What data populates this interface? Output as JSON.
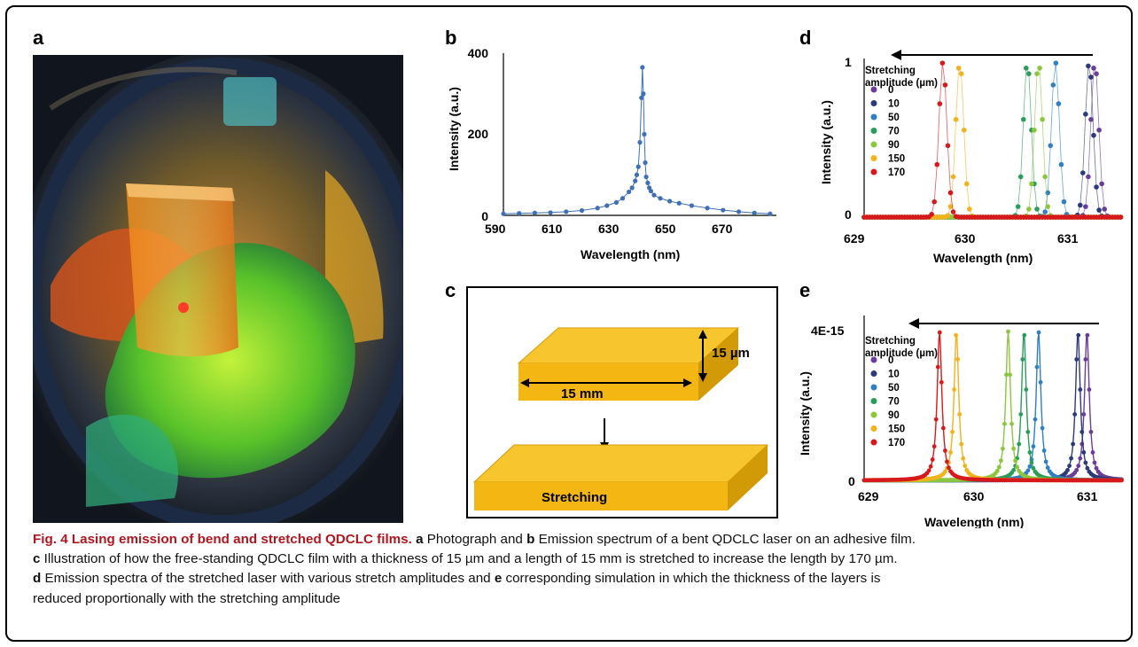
{
  "panel_labels": {
    "a": "a",
    "b": "b",
    "c": "c",
    "d": "d",
    "e": "e"
  },
  "chart_data": [
    {
      "panel": "b",
      "type": "scatter",
      "xlabel": "Wavelength (nm)",
      "ylabel": "Intensity (a.u.)",
      "xlim": [
        590,
        677
      ],
      "ylim": [
        0,
        400
      ],
      "xticks": [
        "590",
        "610",
        "630",
        "650",
        "670"
      ],
      "yticks": [
        "0",
        "200",
        "400"
      ],
      "series": [
        {
          "color": "#3f6fb6",
          "x": [
            590,
            595,
            600,
            605,
            610,
            615,
            620,
            623,
            626,
            628,
            630,
            631,
            632,
            632.5,
            633,
            633.5,
            634,
            634.3,
            634.6,
            634.9,
            635.2,
            635.5,
            636,
            636.5,
            637,
            638,
            640,
            643,
            646,
            650,
            655,
            660,
            665,
            670,
            675
          ],
          "y": [
            4,
            5,
            6,
            7,
            9,
            12,
            18,
            24,
            32,
            42,
            58,
            68,
            85,
            100,
            120,
            180,
            290,
            365,
            300,
            200,
            130,
            95,
            80,
            68,
            60,
            50,
            42,
            35,
            30,
            24,
            18,
            13,
            9,
            6,
            4
          ]
        }
      ]
    },
    {
      "panel": "d",
      "type": "scatter",
      "xlabel": "Wavelength (nm)",
      "ylabel": "Intensity (a.u.)",
      "xlim": [
        629,
        631.3
      ],
      "ylim": [
        0,
        1
      ],
      "xticks": [
        "629",
        "630",
        "631"
      ],
      "yticks": [
        "0",
        "1"
      ],
      "legend_title": "Stretching\namplitude (µm)",
      "series": [
        {
          "name": "0",
          "color": "#6a3d9a",
          "peak": 631.05
        },
        {
          "name": "10",
          "color": "#2b3a78",
          "peak": 631.0
        },
        {
          "name": "50",
          "color": "#2f7fc1",
          "peak": 630.7
        },
        {
          "name": "70",
          "color": "#2a9d5a",
          "peak": 630.45
        },
        {
          "name": "90",
          "color": "#8cc63e",
          "peak": 630.55
        },
        {
          "name": "150",
          "color": "#f2b21b",
          "peak": 629.85
        },
        {
          "name": "170",
          "color": "#d7191c",
          "peak": 629.7
        }
      ]
    },
    {
      "panel": "e",
      "type": "line",
      "xlabel": "Wavelength (nm)",
      "ylabel": "Intensity (a.u.)",
      "xlim": [
        629,
        631.3
      ],
      "ylim": [
        0,
        4e-15
      ],
      "xticks": [
        "629",
        "630",
        "631"
      ],
      "yticks": [
        "0",
        "4E-15"
      ],
      "legend_title": "Stretching\namplitude (µm)",
      "series": [
        {
          "name": "0",
          "color": "#6a3d9a",
          "peak": 630.98
        },
        {
          "name": "10",
          "color": "#2b3a78",
          "peak": 630.9
        },
        {
          "name": "50",
          "color": "#2f7fc1",
          "peak": 630.55
        },
        {
          "name": "70",
          "color": "#2a9d5a",
          "peak": 630.42
        },
        {
          "name": "90",
          "color": "#8cc63e",
          "peak": 630.28
        },
        {
          "name": "150",
          "color": "#f2b21b",
          "peak": 629.82
        },
        {
          "name": "170",
          "color": "#d7191c",
          "peak": 629.67
        }
      ]
    }
  ],
  "diagram_c": {
    "thickness_label": "15 µm",
    "length_label": "15 mm",
    "stretch_label": "Stretching"
  },
  "caption": {
    "fig_label": "Fig. 4 Lasing emission of bend and stretched QDCLC films.",
    "lines": [
      [
        {
          "b": "a"
        },
        {
          "t": " Photograph and "
        },
        {
          "b": "b"
        },
        {
          "t": " Emission spectrum of a bent QDCLC laser on an adhesive film."
        }
      ],
      [
        {
          "b": "c"
        },
        {
          "t": " Illustration of how the free-standing QDCLC film with a thickness of 15 µm and a length of 15 mm is stretched to increase the length by 170 µm."
        }
      ],
      [
        {
          "b": "d"
        },
        {
          "t": " Emission spectra of the stretched laser with various stretch amplitudes and "
        },
        {
          "b": "e"
        },
        {
          "t": " corresponding simulation in which the thickness of the layers is"
        }
      ],
      [
        {
          "t": "reduced proportionally with the stretching amplitude"
        }
      ]
    ]
  }
}
